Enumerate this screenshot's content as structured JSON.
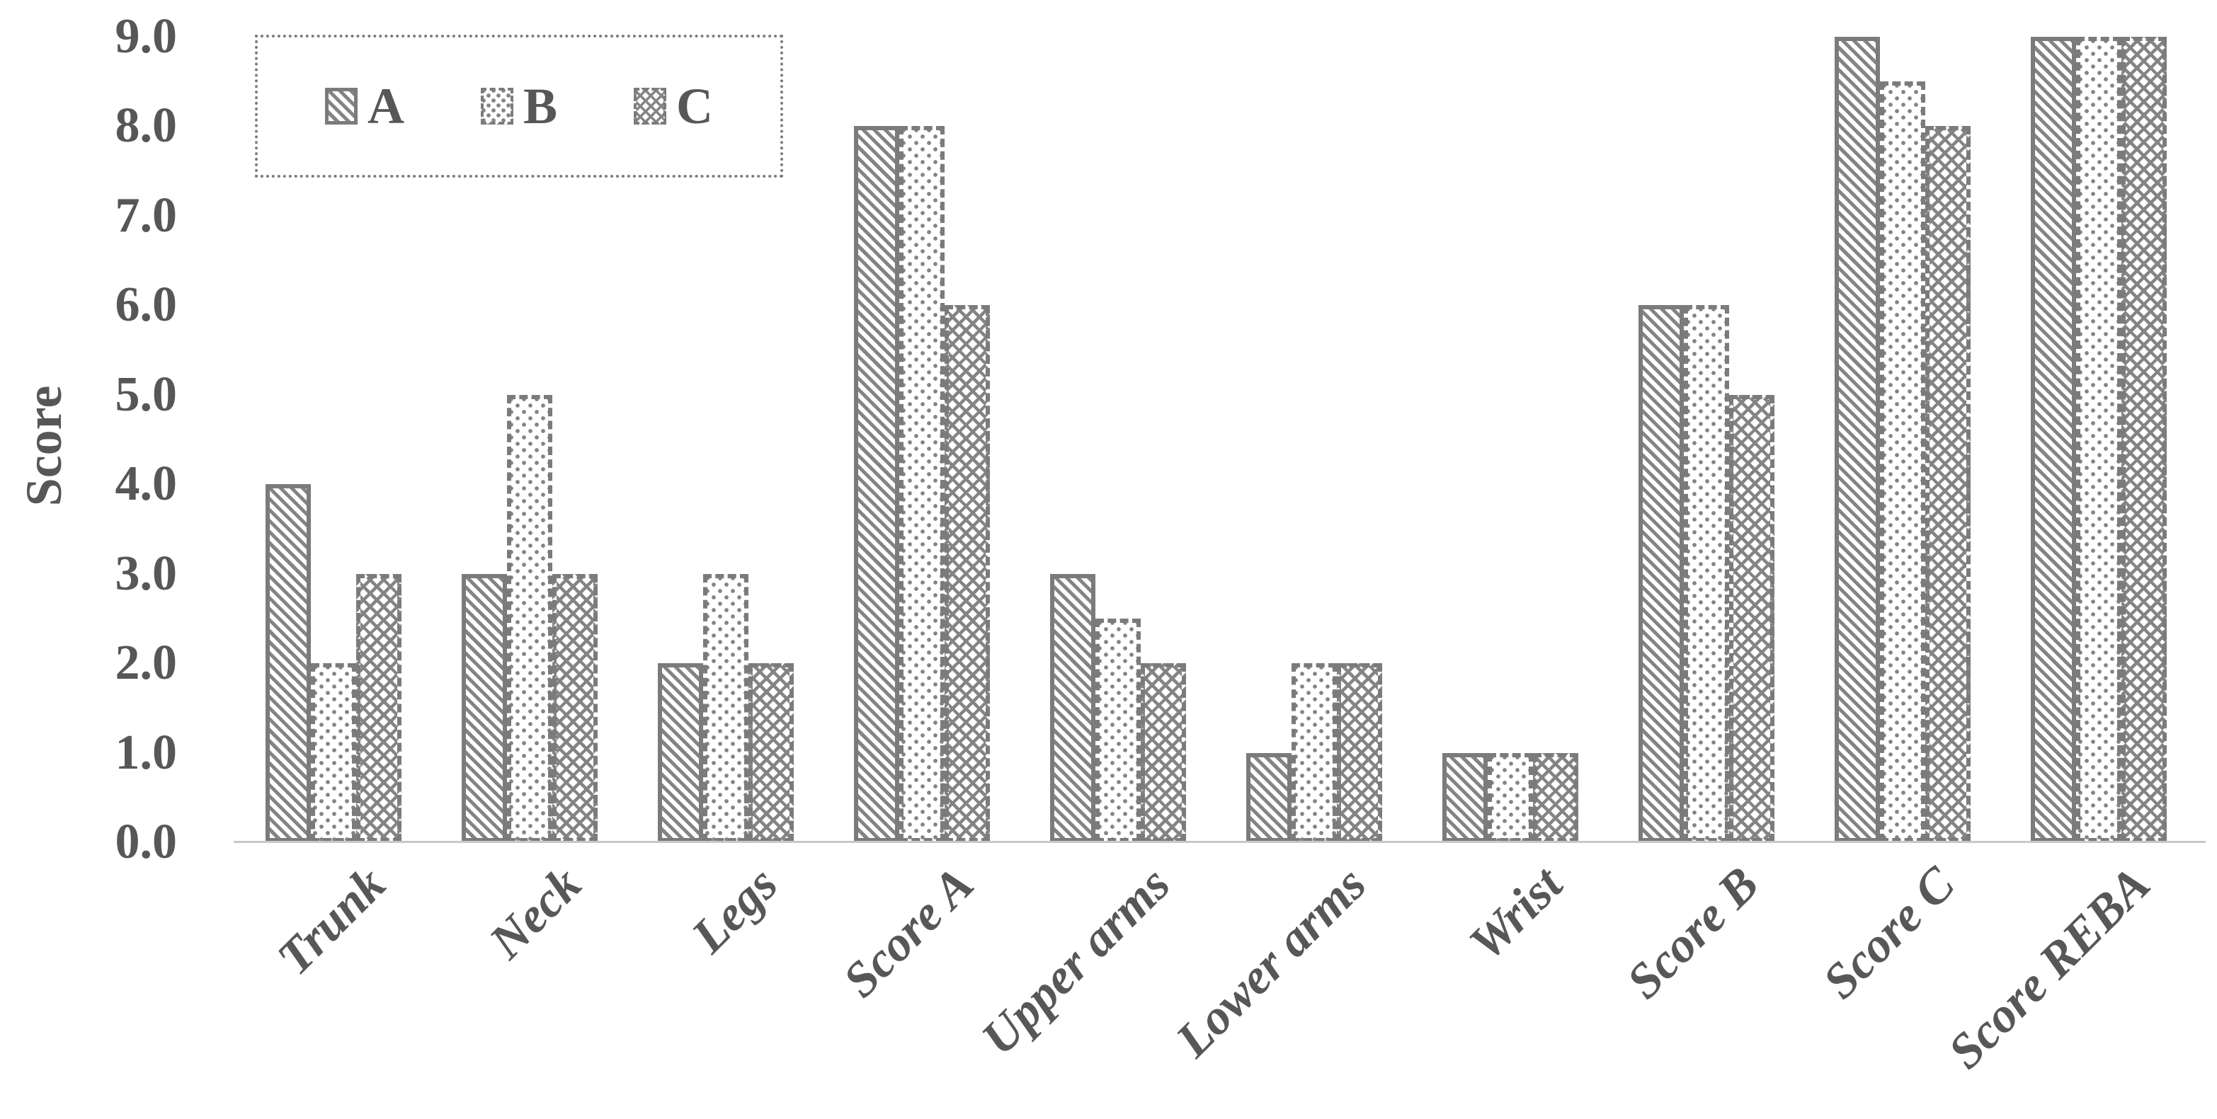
{
  "chart_data": {
    "type": "bar",
    "title": "",
    "xlabel": "",
    "ylabel": "Score",
    "categories": [
      "Trunk",
      "Neck",
      "Legs",
      "Score A",
      "Upper arms",
      "Lower arms",
      "Wrist",
      "Score B",
      "Score C",
      "Score REBA"
    ],
    "series": [
      {
        "name": "A",
        "pattern": "diagonal-stripes",
        "values": [
          4.0,
          3.0,
          2.0,
          8.0,
          3.0,
          1.0,
          1.0,
          6.0,
          9.0,
          9.0
        ]
      },
      {
        "name": "B",
        "pattern": "dots",
        "values": [
          2.0,
          5.0,
          3.0,
          8.0,
          2.5,
          2.0,
          1.0,
          6.0,
          8.5,
          9.0
        ]
      },
      {
        "name": "C",
        "pattern": "crosshatch",
        "values": [
          3.0,
          3.0,
          2.0,
          6.0,
          2.0,
          2.0,
          1.0,
          5.0,
          8.0,
          9.0
        ]
      }
    ],
    "ylim": [
      0,
      9
    ],
    "ytick_step": 1.0,
    "grid": false,
    "legend_position": "top-left"
  },
  "axes": {
    "y_title": "Score",
    "y_tick_labels": [
      "0.0",
      "1.0",
      "2.0",
      "3.0",
      "4.0",
      "5.0",
      "6.0",
      "7.0",
      "8.0",
      "9.0"
    ]
  },
  "legend": {
    "items": [
      {
        "label": "A",
        "pattern": "diagonal-stripes"
      },
      {
        "label": "B",
        "pattern": "dots"
      },
      {
        "label": "C",
        "pattern": "crosshatch"
      }
    ]
  },
  "colors": {
    "background": "#ffffff",
    "text": "#575757",
    "bar_outline": "#7b7b7b",
    "pattern_fill": "#848484",
    "axis_line": "#c8c8c8"
  }
}
